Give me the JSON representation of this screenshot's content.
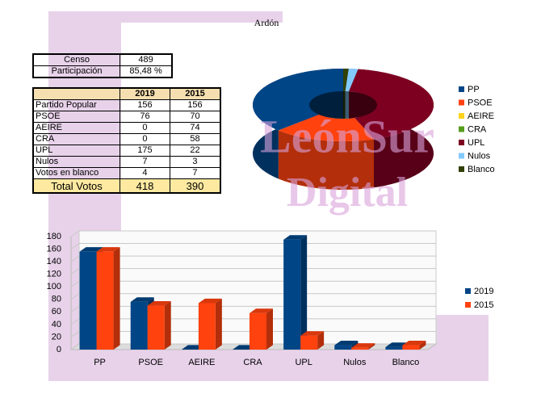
{
  "title": "Ardón",
  "watermark": [
    "LeónSur",
    "Digital"
  ],
  "census_table": {
    "rows": [
      [
        "Censo",
        "489"
      ],
      [
        "Participación",
        "85,48 %"
      ]
    ]
  },
  "votes_table": {
    "header": [
      "2019",
      "2015"
    ],
    "rows": [
      [
        "Partido Popular",
        "156",
        "156"
      ],
      [
        "PSOE",
        "76",
        "70"
      ],
      [
        "AEIRE",
        "0",
        "74"
      ],
      [
        "CRA",
        "0",
        "58"
      ],
      [
        "UPL",
        "175",
        "22"
      ],
      [
        "Nulos",
        "7",
        "3"
      ],
      [
        "Votos en blanco",
        "4",
        "7"
      ]
    ],
    "total": [
      "Total Votos",
      "418",
      "390"
    ]
  },
  "chart_data": [
    {
      "type": "donut3d",
      "categories": [
        "PP",
        "PSOE",
        "AEIRE",
        "CRA",
        "UPL",
        "Nulos",
        "Blanco"
      ],
      "values": [
        156,
        76,
        0,
        0,
        175,
        7,
        4
      ],
      "colors": [
        "#004586",
        "#ff420e",
        "#ffd320",
        "#579d1c",
        "#7e0021",
        "#83caff",
        "#314004"
      ],
      "legend": "right"
    },
    {
      "type": "bar3d",
      "categories": [
        "PP",
        "PSOE",
        "AEIRE",
        "CRA",
        "UPL",
        "Nulos",
        "Blanco"
      ],
      "series": [
        {
          "name": "2019",
          "color": "#004586",
          "values": [
            156,
            76,
            0,
            0,
            175,
            7,
            4
          ]
        },
        {
          "name": "2015",
          "color": "#ff420e",
          "values": [
            156,
            70,
            74,
            58,
            22,
            3,
            7
          ]
        }
      ],
      "ylim": [
        0,
        180
      ],
      "yticks": [
        0,
        20,
        40,
        60,
        80,
        100,
        120,
        140,
        160,
        180
      ],
      "grid": true,
      "legend": "right"
    }
  ]
}
